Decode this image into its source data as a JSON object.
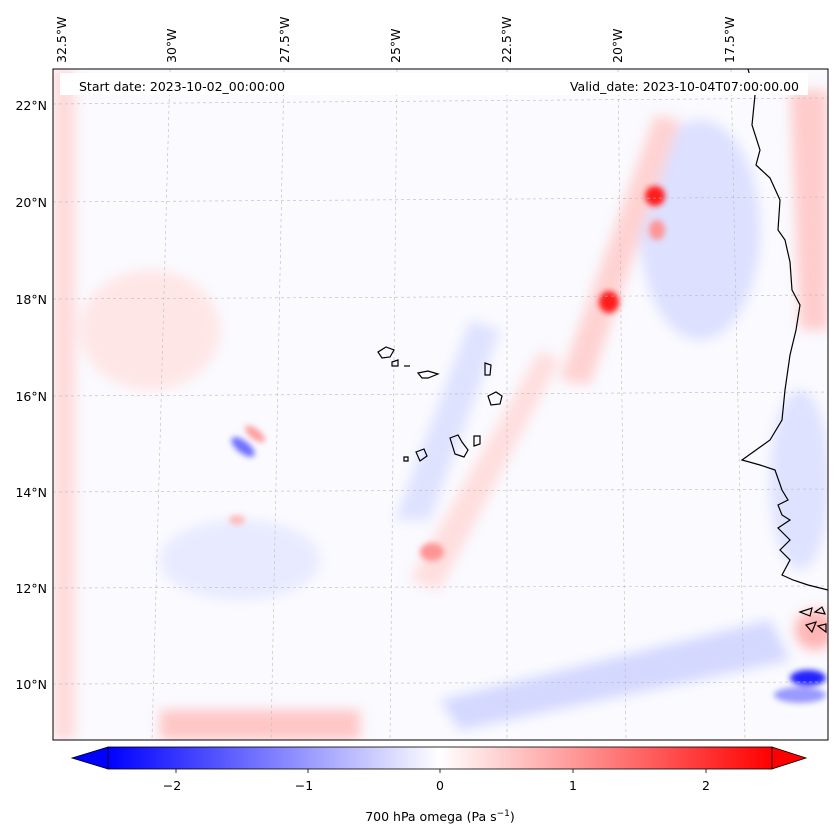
{
  "header": {
    "start_date": "Start date: 2023-10-02_00:00:00",
    "valid_date": "Valid_date: 2023-10-04T07:00:00.00"
  },
  "longitude_labels": [
    "32.5°W",
    "30°W",
    "27.5°W",
    "25°W",
    "22.5°W",
    "20°W",
    "17.5°W"
  ],
  "latitude_labels": [
    "22°N",
    "20°N",
    "18°N",
    "16°N",
    "14°N",
    "12°N",
    "10°N"
  ],
  "colorbar": {
    "label_main": "700 hPa omega (Pa s",
    "label_exp": "−1",
    "label_close": ")",
    "ticks": [
      "−2",
      "−1",
      "0",
      "1",
      "2"
    ],
    "range": [
      -2.7,
      2.7
    ],
    "cmap": "bwr",
    "extend": "both"
  },
  "colors": {
    "negative": "#0000ff",
    "neutral": "#ffffff",
    "positive": "#ff0000",
    "coastline": "#000000",
    "gridline": "#bbbbbb"
  },
  "map": {
    "projection": "lambert-conformal",
    "field": "700 hPa omega",
    "gridlines": true
  }
}
